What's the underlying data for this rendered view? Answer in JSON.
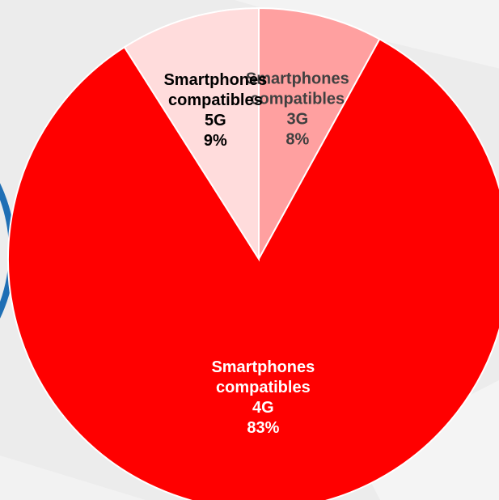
{
  "chart_data": {
    "type": "pie",
    "title": "",
    "slices": [
      {
        "label_lines": [
          "Smartphones",
          "compatibles",
          "3G"
        ],
        "value": 8,
        "value_label": "8%",
        "color": "#ffa0a0",
        "label_color": "#404040"
      },
      {
        "label_lines": [
          "Smartphones",
          "compatibles",
          "4G"
        ],
        "value": 83,
        "value_label": "83%",
        "color": "#ff0000",
        "label_color": "#ffffff"
      },
      {
        "label_lines": [
          "Smartphones",
          "compatibles",
          "5G"
        ],
        "value": 9,
        "value_label": "9%",
        "color": "#ffdcdc",
        "label_color": "#000000"
      }
    ],
    "slice_border_color": "#ffffff",
    "background_color": "#ececec",
    "accent_color": "#1f6fb5"
  }
}
